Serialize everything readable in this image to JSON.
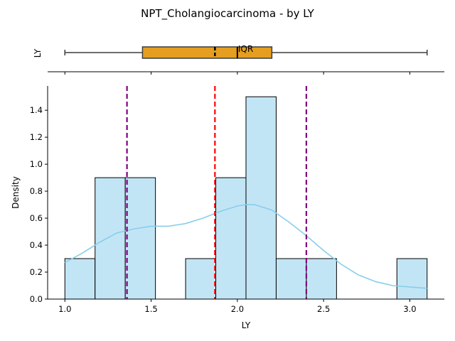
{
  "chart_data": {
    "title": "NPT_Cholangiocarcinoma - by LY",
    "boxplot": {
      "type": "box",
      "ylabel": "LY",
      "whisker_low": 1.0,
      "q1": 1.45,
      "median": 2.0,
      "mean": 1.87,
      "q3": 2.2,
      "whisker_high": 3.1,
      "annotation": "IQR",
      "box_color": "#e59e1f"
    },
    "histogram": {
      "type": "bar",
      "xlabel": "LY",
      "ylabel": "Density",
      "xlim": [
        0.9,
        3.2
      ],
      "ylim": [
        0,
        1.58
      ],
      "xticks": [
        1.0,
        1.5,
        2.0,
        2.5,
        3.0
      ],
      "xtick_labels": [
        "1.0",
        "1.5",
        "2.0",
        "2.5",
        "3.0"
      ],
      "yticks": [
        0.0,
        0.2,
        0.4,
        0.6,
        0.8,
        1.0,
        1.2,
        1.4
      ],
      "ytick_labels": [
        "0.0",
        "0.2",
        "0.4",
        "0.6",
        "0.8",
        "1.0",
        "1.2",
        "1.4"
      ],
      "bin_edges": [
        1.0,
        1.175,
        1.35,
        1.525,
        1.7,
        1.875,
        2.05,
        2.225,
        2.4,
        2.575,
        2.75,
        2.925,
        3.1
      ],
      "values": [
        0.3,
        0.9,
        0.9,
        0.0,
        0.3,
        0.9,
        1.5,
        0.3,
        0.3,
        0.0,
        0.0,
        0.3
      ],
      "bar_color": "#c2e5f5",
      "kde": {
        "x": [
          1.0,
          1.1,
          1.2,
          1.3,
          1.4,
          1.5,
          1.6,
          1.7,
          1.8,
          1.9,
          2.0,
          2.05,
          2.1,
          2.2,
          2.3,
          2.4,
          2.5,
          2.6,
          2.7,
          2.8,
          2.9,
          3.0,
          3.1
        ],
        "y": [
          0.27,
          0.34,
          0.42,
          0.49,
          0.52,
          0.54,
          0.54,
          0.56,
          0.6,
          0.65,
          0.69,
          0.7,
          0.7,
          0.66,
          0.57,
          0.47,
          0.36,
          0.26,
          0.18,
          0.13,
          0.1,
          0.09,
          0.08
        ],
        "color": "#87ceeb"
      },
      "reference_lines": [
        {
          "x": 1.87,
          "color": "#ff0000"
        },
        {
          "x": 1.36,
          "color": "#800080"
        },
        {
          "x": 2.4,
          "color": "#800080"
        }
      ]
    }
  }
}
